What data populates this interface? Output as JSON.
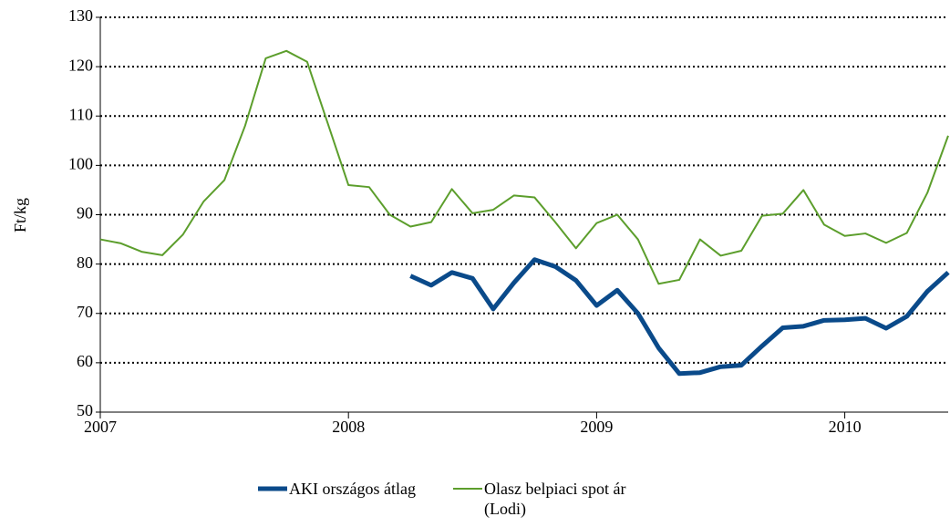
{
  "chart_data": {
    "type": "line",
    "y_label": "Ft/kg",
    "x": [
      0,
      1,
      2,
      3,
      4,
      5,
      6,
      7,
      8,
      9,
      10,
      11,
      12,
      13,
      14,
      15,
      16,
      17,
      18,
      19,
      20,
      21,
      22,
      23,
      24,
      25,
      26,
      27,
      28,
      29,
      30,
      31,
      32,
      33,
      34,
      35,
      36,
      37,
      38,
      39,
      40,
      41
    ],
    "xlim": [
      0,
      41
    ],
    "xticks": [
      {
        "value": 0,
        "label": "2007"
      },
      {
        "value": 12,
        "label": "2008"
      },
      {
        "value": 24,
        "label": "2009"
      },
      {
        "value": 36,
        "label": "2010"
      }
    ],
    "ylim": [
      50,
      130
    ],
    "yticks": [
      50,
      60,
      70,
      80,
      90,
      100,
      110,
      120,
      130
    ],
    "grid": true,
    "legend": "bottom",
    "series": [
      {
        "name": "AKI országos átlag",
        "color": "#0a4a8a",
        "width": 5,
        "values": [
          null,
          null,
          null,
          null,
          null,
          null,
          null,
          null,
          null,
          null,
          null,
          null,
          null,
          null,
          null,
          77.6,
          75.7,
          78.3,
          77.1,
          70.9,
          76.2,
          80.9,
          79.5,
          76.7,
          71.6,
          74.7,
          70,
          63,
          57.8,
          58,
          59.2,
          59.5,
          63.4,
          67.1,
          67.4,
          68.6,
          68.7,
          69,
          67,
          69.4,
          74.5,
          78.3
        ]
      },
      {
        "name": "Olasz belpiaci spot ár (Lodi)",
        "color": "#5c9e2c",
        "width": 2,
        "values": [
          85,
          84.2,
          82.5,
          81.8,
          86,
          92.7,
          97,
          108,
          121.7,
          123.2,
          121,
          108.5,
          96,
          95.6,
          90,
          87.6,
          88.5,
          95.2,
          90.3,
          91,
          93.9,
          93.5,
          88.5,
          83.2,
          88.3,
          90,
          85,
          76,
          76.8,
          85,
          81.7,
          82.7,
          89.8,
          90.2,
          95,
          88,
          85.7,
          86.2,
          84.3,
          86.3,
          94.5,
          106
        ]
      }
    ]
  }
}
